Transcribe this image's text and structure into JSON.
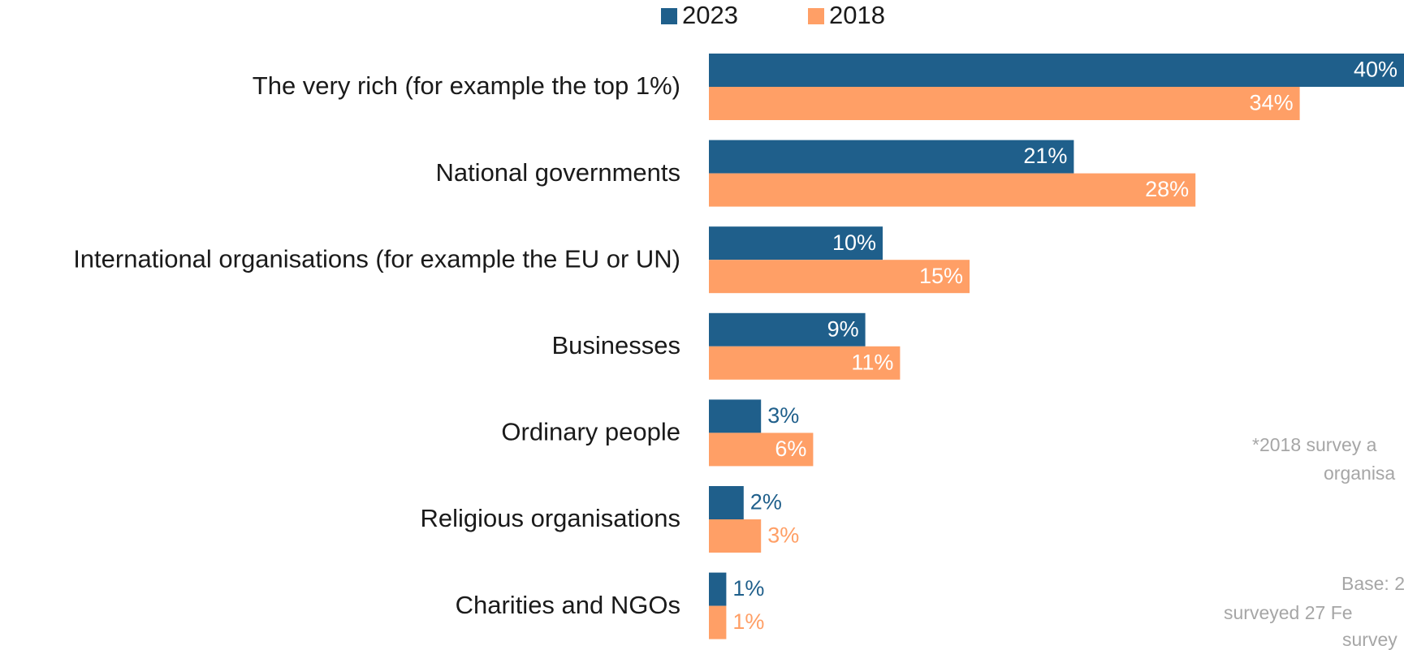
{
  "chart_data": {
    "type": "bar",
    "orientation": "horizontal",
    "categories": [
      "The very rich (for example the top 1%)",
      "National governments",
      "International organisations (for example the EU or UN)",
      "Businesses",
      "Ordinary people",
      "Religious organisations",
      "Charities and NGOs"
    ],
    "series": [
      {
        "name": "2023",
        "color": "#1f5f8b",
        "values": [
          40,
          21,
          10,
          9,
          3,
          2,
          1
        ],
        "value_labels": [
          "40%",
          "21%",
          "10%",
          "9%",
          "3%",
          "2%",
          "1%"
        ]
      },
      {
        "name": "2018",
        "color": "#ff9f66",
        "values": [
          34,
          28,
          15,
          11,
          6,
          3,
          1
        ],
        "value_labels": [
          "34%",
          "28%",
          "15%",
          "11%",
          "6%",
          "3%",
          "1%"
        ]
      }
    ],
    "xlim": [
      0,
      40
    ],
    "legend": "top",
    "notes": [
      "*2018 survey a",
      "organisa",
      "Base: 2",
      "surveyed 27 Fe",
      "survey"
    ]
  }
}
